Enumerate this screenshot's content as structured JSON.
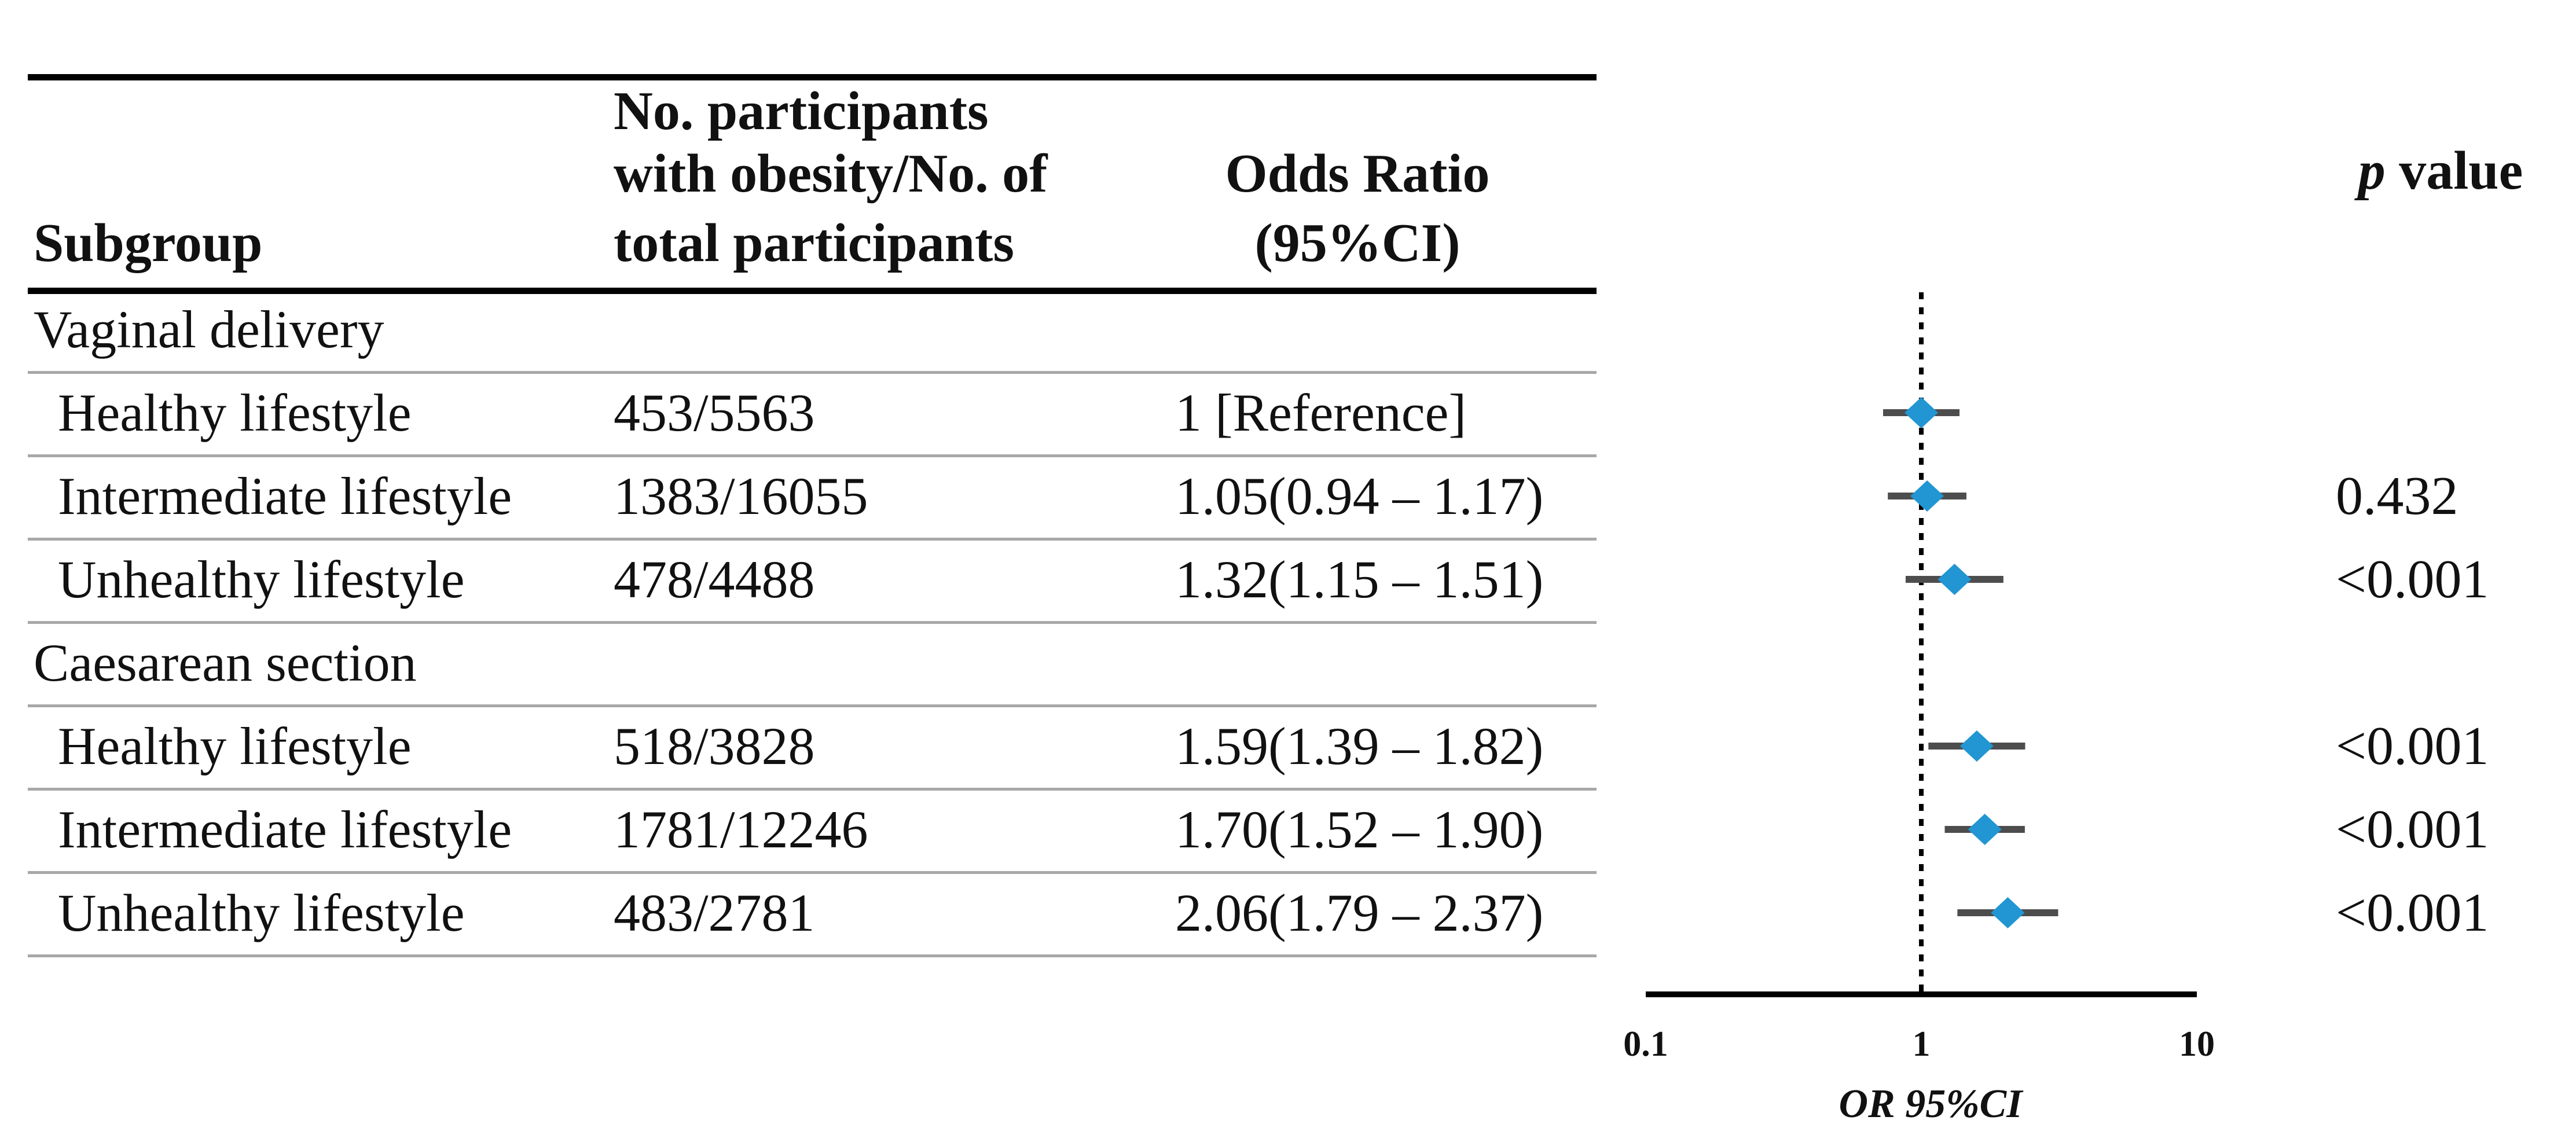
{
  "header": {
    "subgroup": "Subgroup",
    "participants_line1": "No. participants",
    "participants_line2": "with obesity/No. of",
    "participants_line3": "total participants",
    "or_line1": "Odds Ratio",
    "or_line2": "(95%CI)",
    "p_label_italic": "p",
    "p_label_rest": " value"
  },
  "table": {
    "sections": [
      {
        "label": "Vaginal delivery",
        "rows": [
          {
            "subgroup": "Healthy lifestyle",
            "counts": "453/5563",
            "or_text": "1 [Reference]",
            "p": ""
          },
          {
            "subgroup": "Intermediate lifestyle",
            "counts": "1383/16055",
            "or_text": "1.05(0.94 – 1.17)",
            "p": "0.432"
          },
          {
            "subgroup": "Unhealthy lifestyle",
            "counts": "478/4488",
            "or_text": "1.32(1.15 – 1.51)",
            "p": "<0.001"
          }
        ]
      },
      {
        "label": "Caesarean section",
        "rows": [
          {
            "subgroup": "Healthy lifestyle",
            "counts": "518/3828",
            "or_text": "1.59(1.39 – 1.82)",
            "p": "<0.001"
          },
          {
            "subgroup": "Intermediate lifestyle",
            "counts": "1781/12246",
            "or_text": "1.70(1.52 – 1.90)",
            "p": "<0.001"
          },
          {
            "subgroup": "Unhealthy lifestyle",
            "counts": "483/2781",
            "or_text": "2.06(1.79 – 2.37)",
            "p": "<0.001"
          }
        ]
      }
    ]
  },
  "chart_data": {
    "type": "scatter",
    "subtype": "forest-plot",
    "x_scale": "log10",
    "x_range": [
      0.1,
      10
    ],
    "x_ticks": [
      0.1,
      1,
      10
    ],
    "x_tick_labels": [
      "0.1",
      "1",
      "10"
    ],
    "xlabel": "OR 95%CI",
    "reference_line_x": 1,
    "grid": false,
    "legend": "none",
    "series": [
      {
        "name": "Odds Ratio (95%CI)",
        "points": [
          {
            "label": "Vaginal delivery - Healthy lifestyle",
            "or": 1.0,
            "ci_lo": null,
            "ci_hi": null,
            "reference": true,
            "p": null
          },
          {
            "label": "Vaginal delivery - Intermediate lifestyle",
            "or": 1.05,
            "ci_lo": 0.94,
            "ci_hi": 1.17,
            "reference": false,
            "p": "0.432"
          },
          {
            "label": "Vaginal delivery - Unhealthy lifestyle",
            "or": 1.32,
            "ci_lo": 1.15,
            "ci_hi": 1.51,
            "reference": false,
            "p": "<0.001"
          },
          {
            "label": "Caesarean section - Healthy lifestyle",
            "or": 1.59,
            "ci_lo": 1.39,
            "ci_hi": 1.82,
            "reference": false,
            "p": "<0.001"
          },
          {
            "label": "Caesarean section - Intermediate lifestyle",
            "or": 1.7,
            "ci_lo": 1.52,
            "ci_hi": 1.9,
            "reference": false,
            "p": "<0.001"
          },
          {
            "label": "Caesarean section - Unhealthy lifestyle",
            "or": 2.06,
            "ci_lo": 1.79,
            "ci_hi": 2.37,
            "reference": false,
            "p": "<0.001"
          }
        ]
      }
    ]
  },
  "colors": {
    "diamond": "#2196d3",
    "whisker": "#4d4d4d",
    "axis": "#000000",
    "reference_line": "#000000",
    "rule_black": "#000000",
    "rule_gray": "#a8a8a8",
    "text": "#111111"
  }
}
